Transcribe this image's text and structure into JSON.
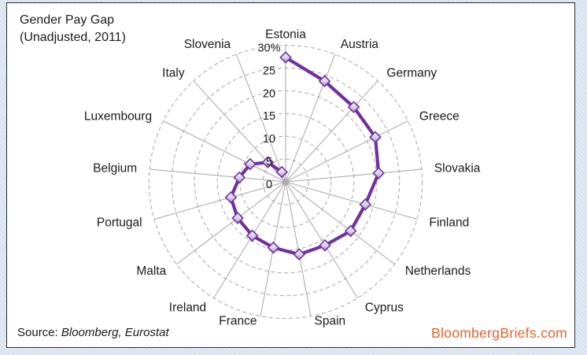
{
  "panel": {
    "title_line1": "Gender Pay Gap",
    "title_line2": "(Unadjusted, 2011)",
    "source_prefix": "Source: ",
    "source_value": "Bloomberg, Eurostat",
    "brand": "BloombergBriefs.com"
  },
  "chart_data": {
    "type": "radar",
    "title": "Gender Pay Gap (Unadjusted, 2011)",
    "unit": "%",
    "direction": "clockwise-from-top",
    "closed": false,
    "categories": [
      "Estonia",
      "Austria",
      "Germany",
      "Greece",
      "Slovakia",
      "Finland",
      "Netherlands",
      "Cyprus",
      "Spain",
      "France",
      "Ireland",
      "Malta",
      "Portugal",
      "Belgium",
      "Luxembourg",
      "Italy",
      "Slovenia"
    ],
    "values": [
      27.3,
      23.7,
      22.2,
      22.0,
      20.5,
      18.2,
      17.9,
      16.4,
      16.2,
      14.7,
      13.9,
      13.2,
      12.5,
      10.2,
      8.7,
      5.8,
      2.3
    ],
    "axis": {
      "min": 0,
      "max": 30,
      "step": 5,
      "tick_values": [
        30,
        25,
        20,
        15,
        10,
        5,
        0
      ],
      "tick_labels": [
        "30%",
        "25",
        "20",
        "15",
        "10",
        "5",
        "0"
      ],
      "grid": "dashed-circles"
    },
    "style": {
      "line_color": "#7030a0",
      "marker_border_color": "#7030a0",
      "marker_gradient": [
        "#f0f1fa",
        "#d9d6ed",
        "#b288c6"
      ],
      "grid_color": "#a6a6a6",
      "center_dot_color": "#abaaae",
      "label_color": "#1a1a1a",
      "brand_color": "#e8632c",
      "background_color": "#dce6f1"
    }
  }
}
